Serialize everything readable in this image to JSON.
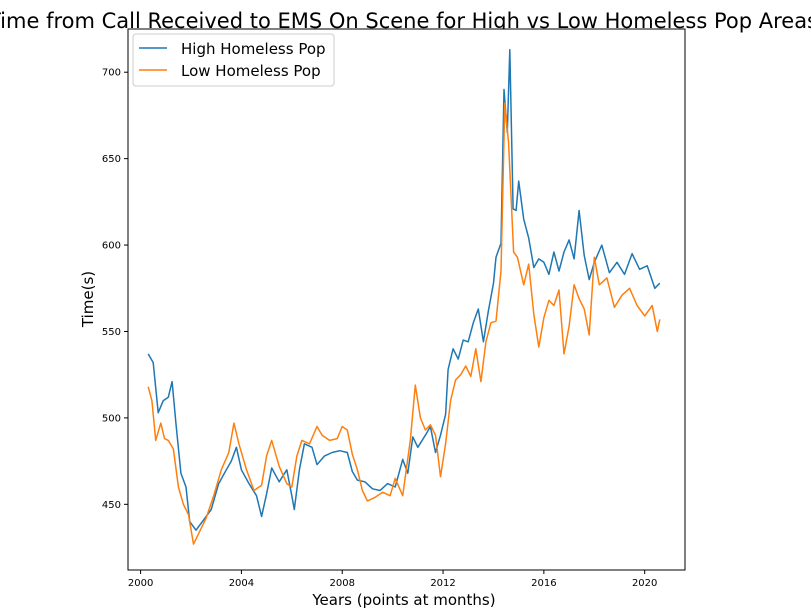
{
  "chart_data": {
    "type": "line",
    "title": "Time from Call Received to EMS On Scene for High vs Low Homeless Pop Areas",
    "xlabel": "Years (points at months)",
    "ylabel": "Time(s)",
    "xlim": [
      1999.5,
      2021.6
    ],
    "ylim": [
      412,
      725
    ],
    "xticks": [
      2000,
      2004,
      2008,
      2012,
      2016,
      2020
    ],
    "yticks": [
      450,
      500,
      550,
      600,
      650,
      700
    ],
    "grid": false,
    "legend_position": "top-left",
    "colors": {
      "high": "#1f77b4",
      "low": "#ff7f0e"
    },
    "series": [
      {
        "name": "High Homeless Pop",
        "key": "high",
        "points": [
          [
            2000.3,
            537
          ],
          [
            2000.5,
            532
          ],
          [
            2000.7,
            503
          ],
          [
            2000.9,
            510
          ],
          [
            2001.1,
            512
          ],
          [
            2001.25,
            521
          ],
          [
            2001.4,
            497
          ],
          [
            2001.6,
            468
          ],
          [
            2001.8,
            460
          ],
          [
            2001.95,
            440
          ],
          [
            2002.2,
            435
          ],
          [
            2002.5,
            441
          ],
          [
            2002.8,
            447
          ],
          [
            2003.1,
            462
          ],
          [
            2003.4,
            470
          ],
          [
            2003.6,
            475
          ],
          [
            2003.8,
            483
          ],
          [
            2004.0,
            470
          ],
          [
            2004.3,
            462
          ],
          [
            2004.6,
            455
          ],
          [
            2004.8,
            443
          ],
          [
            2005.0,
            456
          ],
          [
            2005.2,
            471
          ],
          [
            2005.5,
            463
          ],
          [
            2005.8,
            470
          ],
          [
            2006.0,
            455
          ],
          [
            2006.1,
            447
          ],
          [
            2006.3,
            470
          ],
          [
            2006.5,
            485
          ],
          [
            2006.8,
            483
          ],
          [
            2007.0,
            473
          ],
          [
            2007.3,
            478
          ],
          [
            2007.6,
            480
          ],
          [
            2007.9,
            481
          ],
          [
            2008.2,
            480
          ],
          [
            2008.4,
            469
          ],
          [
            2008.6,
            464
          ],
          [
            2008.9,
            463
          ],
          [
            2009.2,
            459
          ],
          [
            2009.5,
            458
          ],
          [
            2009.8,
            462
          ],
          [
            2010.1,
            460
          ],
          [
            2010.4,
            476
          ],
          [
            2010.6,
            468
          ],
          [
            2010.8,
            489
          ],
          [
            2011.0,
            483
          ],
          [
            2011.3,
            490
          ],
          [
            2011.5,
            495
          ],
          [
            2011.7,
            480
          ],
          [
            2011.9,
            490
          ],
          [
            2012.1,
            502
          ],
          [
            2012.2,
            528
          ],
          [
            2012.4,
            540
          ],
          [
            2012.6,
            534
          ],
          [
            2012.8,
            545
          ],
          [
            2013.0,
            544
          ],
          [
            2013.2,
            555
          ],
          [
            2013.4,
            563
          ],
          [
            2013.6,
            544
          ],
          [
            2013.8,
            562
          ],
          [
            2014.0,
            578
          ],
          [
            2014.1,
            593
          ],
          [
            2014.3,
            601
          ],
          [
            2014.42,
            690
          ],
          [
            2014.55,
            665
          ],
          [
            2014.65,
            713
          ],
          [
            2014.78,
            621
          ],
          [
            2014.9,
            620
          ],
          [
            2015.0,
            637
          ],
          [
            2015.2,
            615
          ],
          [
            2015.4,
            604
          ],
          [
            2015.6,
            587
          ],
          [
            2015.8,
            592
          ],
          [
            2016.0,
            590
          ],
          [
            2016.2,
            583
          ],
          [
            2016.4,
            596
          ],
          [
            2016.6,
            585
          ],
          [
            2016.8,
            596
          ],
          [
            2017.0,
            603
          ],
          [
            2017.2,
            592
          ],
          [
            2017.4,
            620
          ],
          [
            2017.6,
            594
          ],
          [
            2017.8,
            580
          ],
          [
            2018.0,
            590
          ],
          [
            2018.3,
            600
          ],
          [
            2018.6,
            584
          ],
          [
            2018.9,
            590
          ],
          [
            2019.2,
            583
          ],
          [
            2019.5,
            595
          ],
          [
            2019.8,
            586
          ],
          [
            2020.1,
            588
          ],
          [
            2020.4,
            575
          ],
          [
            2020.6,
            578
          ]
        ]
      },
      {
        "name": "Low Homeless Pop",
        "key": "low",
        "points": [
          [
            2000.3,
            518
          ],
          [
            2000.45,
            510
          ],
          [
            2000.6,
            487
          ],
          [
            2000.8,
            497
          ],
          [
            2000.95,
            488
          ],
          [
            2001.1,
            487
          ],
          [
            2001.3,
            482
          ],
          [
            2001.5,
            460
          ],
          [
            2001.7,
            450
          ],
          [
            2001.9,
            444
          ],
          [
            2002.1,
            427
          ],
          [
            2002.3,
            433
          ],
          [
            2002.6,
            442
          ],
          [
            2002.9,
            455
          ],
          [
            2003.2,
            470
          ],
          [
            2003.5,
            480
          ],
          [
            2003.7,
            497
          ],
          [
            2003.9,
            485
          ],
          [
            2004.2,
            470
          ],
          [
            2004.5,
            458
          ],
          [
            2004.8,
            461
          ],
          [
            2005.0,
            478
          ],
          [
            2005.2,
            487
          ],
          [
            2005.5,
            472
          ],
          [
            2005.8,
            462
          ],
          [
            2006.0,
            460
          ],
          [
            2006.2,
            478
          ],
          [
            2006.4,
            487
          ],
          [
            2006.7,
            485
          ],
          [
            2007.0,
            495
          ],
          [
            2007.2,
            490
          ],
          [
            2007.5,
            487
          ],
          [
            2007.8,
            488
          ],
          [
            2008.0,
            495
          ],
          [
            2008.2,
            493
          ],
          [
            2008.4,
            479
          ],
          [
            2008.6,
            470
          ],
          [
            2008.8,
            458
          ],
          [
            2009.0,
            452
          ],
          [
            2009.3,
            454
          ],
          [
            2009.6,
            457
          ],
          [
            2009.9,
            455
          ],
          [
            2010.1,
            465
          ],
          [
            2010.4,
            455
          ],
          [
            2010.7,
            487
          ],
          [
            2010.9,
            519
          ],
          [
            2011.1,
            500
          ],
          [
            2011.3,
            493
          ],
          [
            2011.5,
            496
          ],
          [
            2011.7,
            490
          ],
          [
            2011.9,
            466
          ],
          [
            2012.1,
            485
          ],
          [
            2012.3,
            510
          ],
          [
            2012.5,
            522
          ],
          [
            2012.7,
            525
          ],
          [
            2012.9,
            530
          ],
          [
            2013.1,
            524
          ],
          [
            2013.3,
            540
          ],
          [
            2013.5,
            521
          ],
          [
            2013.7,
            544
          ],
          [
            2013.9,
            555
          ],
          [
            2014.1,
            556
          ],
          [
            2014.3,
            585
          ],
          [
            2014.45,
            682
          ],
          [
            2014.6,
            659
          ],
          [
            2014.8,
            596
          ],
          [
            2014.95,
            593
          ],
          [
            2015.2,
            577
          ],
          [
            2015.4,
            589
          ],
          [
            2015.6,
            560
          ],
          [
            2015.8,
            541
          ],
          [
            2016.0,
            558
          ],
          [
            2016.2,
            568
          ],
          [
            2016.4,
            565
          ],
          [
            2016.6,
            574
          ],
          [
            2016.8,
            537
          ],
          [
            2017.0,
            553
          ],
          [
            2017.2,
            577
          ],
          [
            2017.4,
            569
          ],
          [
            2017.6,
            563
          ],
          [
            2017.8,
            548
          ],
          [
            2018.0,
            593
          ],
          [
            2018.2,
            577
          ],
          [
            2018.5,
            581
          ],
          [
            2018.8,
            564
          ],
          [
            2019.1,
            571
          ],
          [
            2019.4,
            575
          ],
          [
            2019.7,
            565
          ],
          [
            2020.0,
            559
          ],
          [
            2020.3,
            565
          ],
          [
            2020.5,
            550
          ],
          [
            2020.6,
            557
          ]
        ]
      }
    ]
  }
}
